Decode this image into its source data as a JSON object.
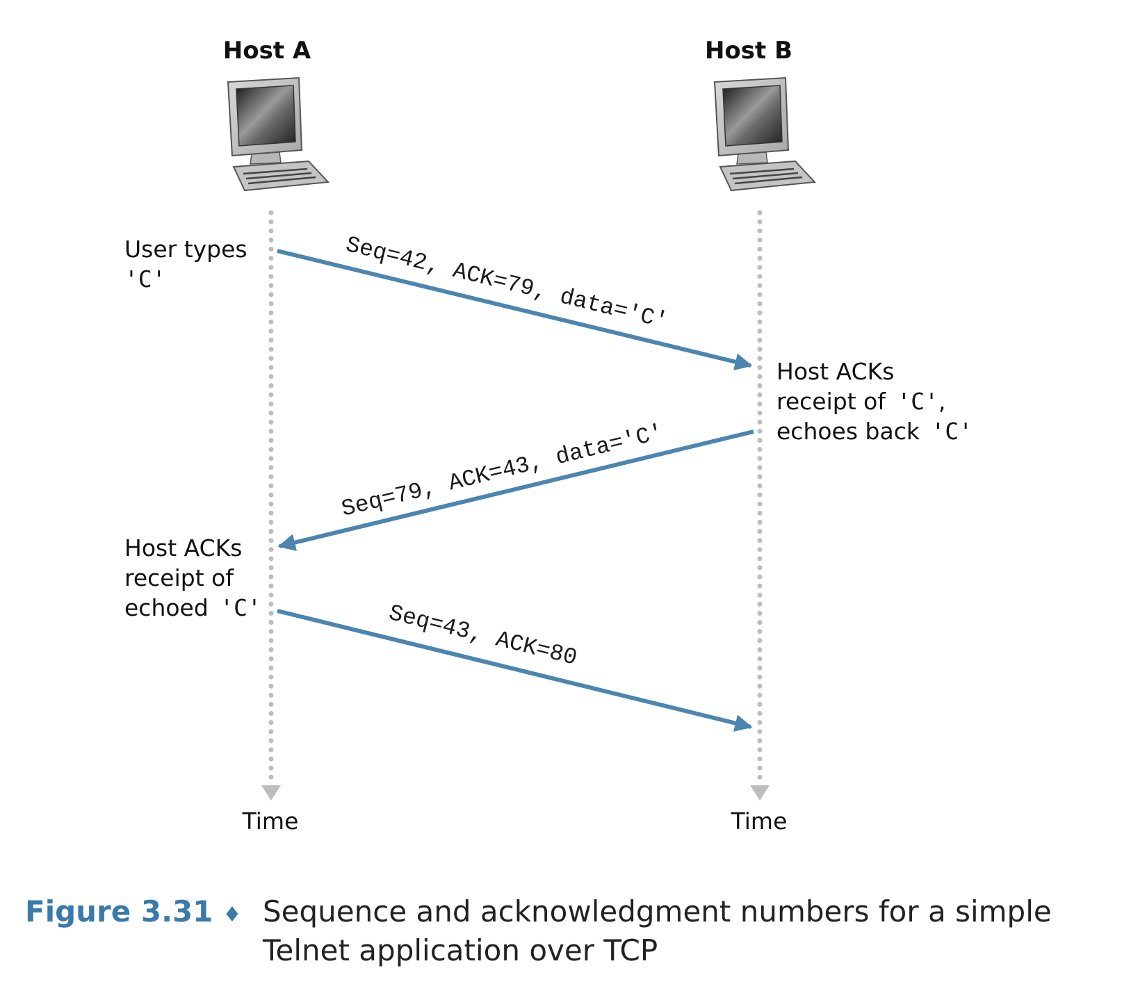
{
  "hosts": [
    {
      "name": "Host A",
      "time_label": "Time",
      "icon": "computer-icon"
    },
    {
      "name": "Host B",
      "time_label": "Time",
      "icon": "computer-icon"
    }
  ],
  "notes": {
    "a1": {
      "line1": "User types",
      "char": "'C'"
    },
    "b1": {
      "line1": "Host ACKs",
      "line2_text": "receipt of ",
      "line2_char": "'C'",
      "line2_tail": ",",
      "line3_text": "echoes back ",
      "line3_char": "'C'"
    },
    "a2": {
      "line1": "Host ACKs",
      "line2": "receipt of",
      "line3_text": "echoed ",
      "line3_char": "'C'"
    }
  },
  "messages": [
    {
      "label": "Seq=42, ACK=79, data='C'",
      "from": "Host A",
      "to": "Host B"
    },
    {
      "label": "Seq=79, ACK=43, data='C'",
      "from": "Host B",
      "to": "Host A"
    },
    {
      "label": "Seq=43, ACK=80",
      "from": "Host A",
      "to": "Host B"
    }
  ],
  "caption": {
    "number": "Figure 3.31",
    "separator": "♦",
    "text": "Sequence and acknowledgment numbers for a simple Telnet application over TCP"
  },
  "colors": {
    "arrow": "#4a86b0",
    "timeline": "#bdbdbd",
    "caption_accent": "#3a7aa8"
  }
}
